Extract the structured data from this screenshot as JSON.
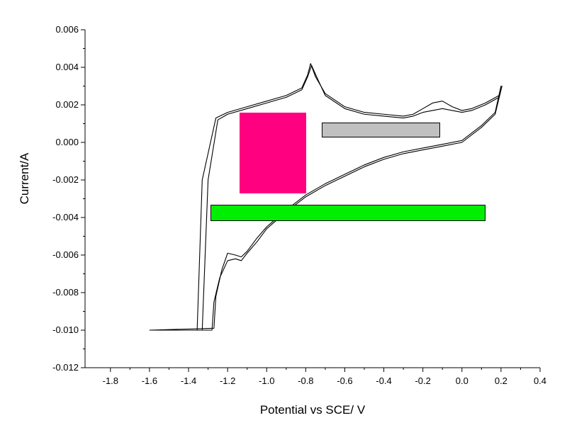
{
  "chart_data": {
    "type": "line",
    "title": "",
    "xlabel": "Potential vs SCE/ V",
    "ylabel": "Current/A",
    "xlim": [
      -1.93,
      0.4
    ],
    "ylim": [
      -0.012,
      0.006
    ],
    "x_ticks": [
      "-1.8",
      "-1.6",
      "-1.4",
      "-1.2",
      "-1.0",
      "-0.8",
      "-0.6",
      "-0.4",
      "-0.2",
      "0.0",
      "0.2",
      "0.4"
    ],
    "y_ticks": [
      "-0.012",
      "-0.010",
      "-0.008",
      "-0.006",
      "-0.004",
      "-0.002",
      "0.000",
      "0.002",
      "0.004",
      "0.006"
    ],
    "grid": false,
    "legend": "none",
    "line_color": "#000000",
    "series": [
      {
        "x": [
          -1.6,
          -1.356,
          -1.33,
          -1.26,
          -1.2,
          -1.1,
          -1.0,
          -0.9,
          -0.82,
          -0.79,
          -0.775,
          -0.75,
          -0.7,
          -0.6,
          -0.5,
          -0.4,
          -0.3,
          -0.25,
          -0.2,
          -0.15,
          -0.1,
          -0.05,
          0.0,
          0.05,
          0.12,
          0.19,
          0.205,
          0.17,
          0.1,
          0.0,
          -0.1,
          -0.2,
          -0.3,
          -0.4,
          -0.5,
          -0.6,
          -0.7,
          -0.8,
          -0.9,
          -1.0,
          -1.05,
          -1.1,
          -1.13,
          -1.16,
          -1.2,
          -1.24,
          -1.27,
          -1.28,
          -1.6
        ],
        "y": [
          -0.01,
          -0.01,
          -0.002,
          0.0013,
          0.0016,
          0.0019,
          0.0022,
          0.0025,
          0.0029,
          0.0036,
          0.0042,
          0.0035,
          0.0026,
          0.0019,
          0.0016,
          0.0015,
          0.0014,
          0.0015,
          0.0018,
          0.0021,
          0.0022,
          0.0019,
          0.0017,
          0.0018,
          0.0021,
          0.0025,
          0.003,
          0.0015,
          0.0008,
          0.0,
          -0.0002,
          -0.0004,
          -0.0006,
          -0.0009,
          -0.0013,
          -0.0018,
          -0.0023,
          -0.0029,
          -0.0037,
          -0.0046,
          -0.0053,
          -0.0059,
          -0.0063,
          -0.0062,
          -0.0063,
          -0.0072,
          -0.0085,
          -0.01,
          -0.01
        ]
      },
      {
        "x": [
          -1.6,
          -1.33,
          -1.3,
          -1.25,
          -1.2,
          -1.1,
          -1.0,
          -0.9,
          -0.82,
          -0.79,
          -0.77,
          -0.74,
          -0.7,
          -0.6,
          -0.5,
          -0.4,
          -0.3,
          -0.25,
          -0.2,
          -0.15,
          -0.1,
          -0.05,
          0.0,
          0.05,
          0.12,
          0.19,
          0.2,
          0.17,
          0.1,
          0.0,
          -0.1,
          -0.2,
          -0.3,
          -0.4,
          -0.5,
          -0.6,
          -0.7,
          -0.8,
          -0.9,
          -1.0,
          -1.05,
          -1.1,
          -1.13,
          -1.16,
          -1.2,
          -1.23,
          -1.26,
          -1.27,
          -1.6
        ],
        "y": [
          -0.01,
          -0.01,
          -0.002,
          0.0012,
          0.0015,
          0.0018,
          0.0021,
          0.0024,
          0.0028,
          0.0035,
          0.0041,
          0.0034,
          0.0025,
          0.0018,
          0.0015,
          0.0014,
          0.0013,
          0.0014,
          0.0016,
          0.0017,
          0.0018,
          0.0017,
          0.0016,
          0.0017,
          0.002,
          0.0024,
          0.003,
          0.0016,
          0.0009,
          0.0001,
          -0.0001,
          -0.0003,
          -0.0005,
          -0.0008,
          -0.0012,
          -0.0017,
          -0.0022,
          -0.0028,
          -0.0036,
          -0.0045,
          -0.0051,
          -0.0058,
          -0.0061,
          -0.006,
          -0.0059,
          -0.0068,
          -0.0082,
          -0.0099,
          -0.01
        ]
      }
    ],
    "overlay_colors": {
      "magenta": "#ff0080",
      "gray": "#c0c0c0",
      "green": "#00ee00"
    }
  }
}
